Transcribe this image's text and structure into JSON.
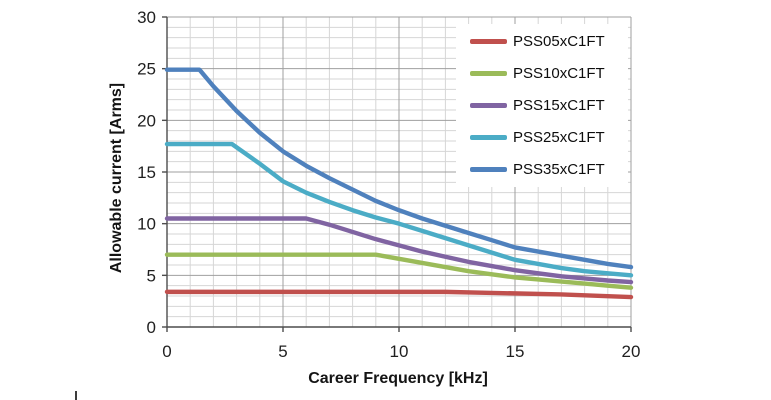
{
  "chart_data": {
    "type": "line",
    "title": "",
    "xlabel": "Career Frequency [kHz]",
    "ylabel": "Allowable current [Arms]",
    "xlim": [
      0,
      20
    ],
    "ylim": [
      0,
      30
    ],
    "x_ticks": [
      0,
      5,
      10,
      15,
      20
    ],
    "y_ticks": [
      0,
      5,
      10,
      15,
      20,
      25,
      30
    ],
    "minor_grid_step": 1,
    "grid": "minor and major, both axes",
    "legend_position": "inside top-right",
    "colors": {
      "minor_grid": "#d6d6d6",
      "major_grid": "#9f9f9f",
      "axis": "#4d4d4d",
      "tick_text": "#1f1f1f"
    },
    "series": [
      {
        "name": "PSS05xC1FT",
        "color": "#C0504D",
        "points": [
          [
            0,
            3.4
          ],
          [
            12,
            3.4
          ],
          [
            14,
            3.3
          ],
          [
            17,
            3.15
          ],
          [
            20,
            2.9
          ]
        ]
      },
      {
        "name": "PSS10xC1FT",
        "color": "#9BBB59",
        "points": [
          [
            0,
            7.0
          ],
          [
            9,
            7.0
          ],
          [
            10,
            6.6
          ],
          [
            11,
            6.2
          ],
          [
            12,
            5.8
          ],
          [
            13,
            5.4
          ],
          [
            14,
            5.1
          ],
          [
            15,
            4.8
          ],
          [
            16,
            4.6
          ],
          [
            17,
            4.4
          ],
          [
            18,
            4.2
          ],
          [
            19,
            4.0
          ],
          [
            20,
            3.8
          ]
        ]
      },
      {
        "name": "PSS15xC1FT",
        "color": "#8064A2",
        "points": [
          [
            0,
            10.5
          ],
          [
            6,
            10.5
          ],
          [
            7,
            9.9
          ],
          [
            8,
            9.2
          ],
          [
            9,
            8.5
          ],
          [
            10,
            7.9
          ],
          [
            11,
            7.3
          ],
          [
            12,
            6.8
          ],
          [
            13,
            6.3
          ],
          [
            14,
            5.9
          ],
          [
            15,
            5.5
          ],
          [
            16,
            5.2
          ],
          [
            17,
            4.9
          ],
          [
            18,
            4.7
          ],
          [
            19,
            4.5
          ],
          [
            20,
            4.35
          ]
        ]
      },
      {
        "name": "PSS25xC1FT",
        "color": "#4BACC6",
        "points": [
          [
            0,
            17.7
          ],
          [
            2.8,
            17.7
          ],
          [
            4,
            15.8
          ],
          [
            5,
            14.1
          ],
          [
            6,
            13.0
          ],
          [
            7,
            12.1
          ],
          [
            8,
            11.3
          ],
          [
            9,
            10.6
          ],
          [
            10,
            10.0
          ],
          [
            11,
            9.3
          ],
          [
            12,
            8.6
          ],
          [
            13,
            7.9
          ],
          [
            14,
            7.2
          ],
          [
            15,
            6.5
          ],
          [
            16,
            6.1
          ],
          [
            17,
            5.7
          ],
          [
            18,
            5.4
          ],
          [
            19,
            5.2
          ],
          [
            20,
            5.0
          ]
        ]
      },
      {
        "name": "PSS35xC1FT",
        "color": "#4F81BD",
        "points": [
          [
            0,
            24.9
          ],
          [
            1.4,
            24.9
          ],
          [
            2,
            23.3
          ],
          [
            3,
            20.9
          ],
          [
            4,
            18.8
          ],
          [
            5,
            17.0
          ],
          [
            6,
            15.6
          ],
          [
            7,
            14.4
          ],
          [
            8,
            13.3
          ],
          [
            9,
            12.2
          ],
          [
            10,
            11.3
          ],
          [
            11,
            10.5
          ],
          [
            12,
            9.8
          ],
          [
            13,
            9.1
          ],
          [
            14,
            8.4
          ],
          [
            15,
            7.7
          ],
          [
            16,
            7.3
          ],
          [
            17,
            6.9
          ],
          [
            18,
            6.5
          ],
          [
            19,
            6.1
          ],
          [
            20,
            5.8
          ]
        ]
      }
    ]
  }
}
